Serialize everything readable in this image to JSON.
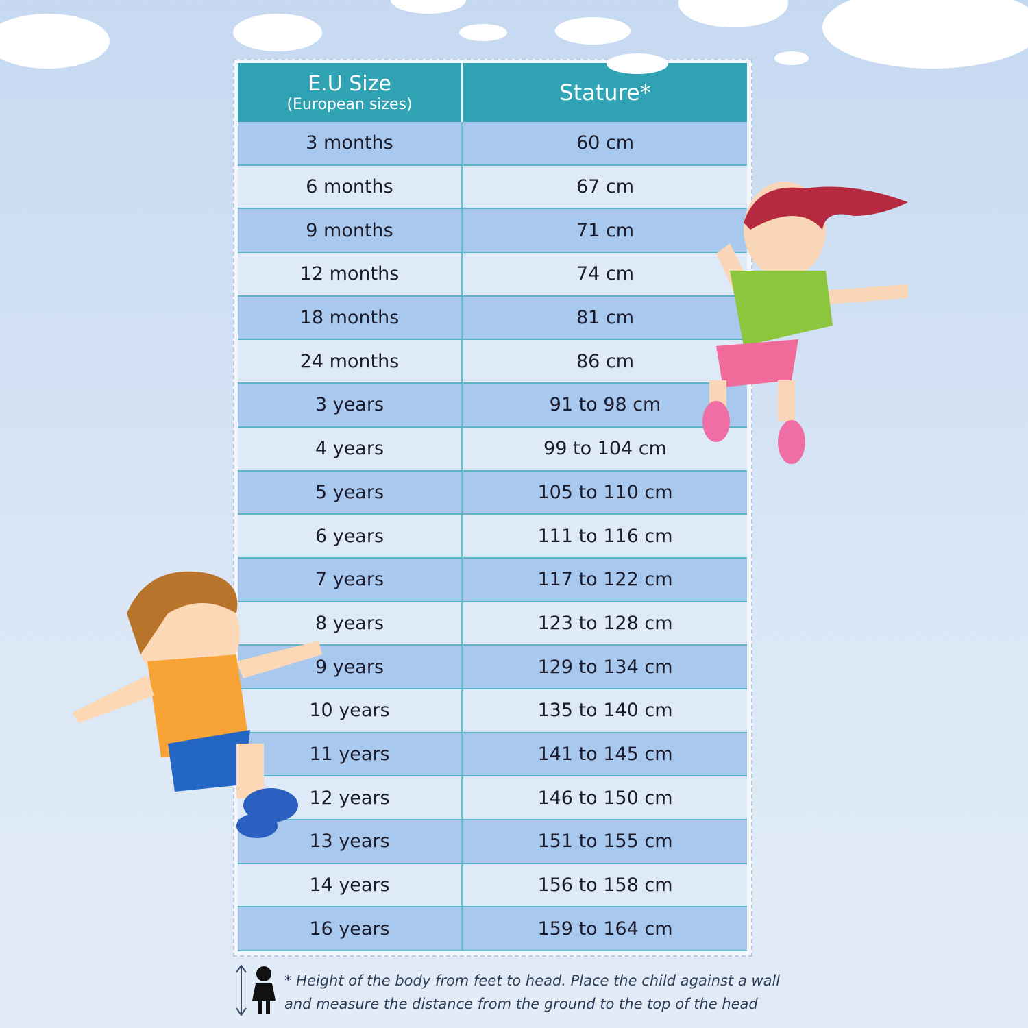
{
  "table": {
    "headers": {
      "size_title": "E.U Size",
      "size_subtitle": "(European sizes)",
      "stature": "Stature*"
    },
    "rows": [
      {
        "size": "3 months",
        "stature": "60 cm"
      },
      {
        "size": "6  months",
        "stature": "67 cm"
      },
      {
        "size": "9  months",
        "stature": "71 cm"
      },
      {
        "size": "12  months",
        "stature": "74 cm"
      },
      {
        "size": "18  months",
        "stature": "81 cm"
      },
      {
        "size": "24  months",
        "stature": "86 cm"
      },
      {
        "size": "3 years",
        "stature": "91 to 98 cm"
      },
      {
        "size": "4  years",
        "stature": "99 to 104 cm"
      },
      {
        "size": "5 years",
        "stature": "105 to 110 cm"
      },
      {
        "size": "6 years",
        "stature": "111 to 116 cm"
      },
      {
        "size": "7 years",
        "stature": "117 to 122 cm"
      },
      {
        "size": "8 years",
        "stature": "123 to 128 cm"
      },
      {
        "size": "9 years",
        "stature": "129 to 134 cm"
      },
      {
        "size": "10 years",
        "stature": "135 to 140 cm"
      },
      {
        "size": "11 years",
        "stature": "141 to 145 cm"
      },
      {
        "size": "12 years",
        "stature": "146 to 150 cm"
      },
      {
        "size": "13 years",
        "stature": "151 to 155 cm"
      },
      {
        "size": "14 years",
        "stature": "156 to 158 cm"
      },
      {
        "size": "16 years",
        "stature": "159 to 164 cm"
      }
    ]
  },
  "footnote": {
    "line1": "* Height of the body from feet to head. Place the child against a wall",
    "line2": "and measure the distance from the ground to the top of the head"
  },
  "colors": {
    "header": "#2fa3b4",
    "row_dark": "#a9c8ee",
    "row_light": "#deeaf8",
    "background": "#c6d9f1"
  }
}
